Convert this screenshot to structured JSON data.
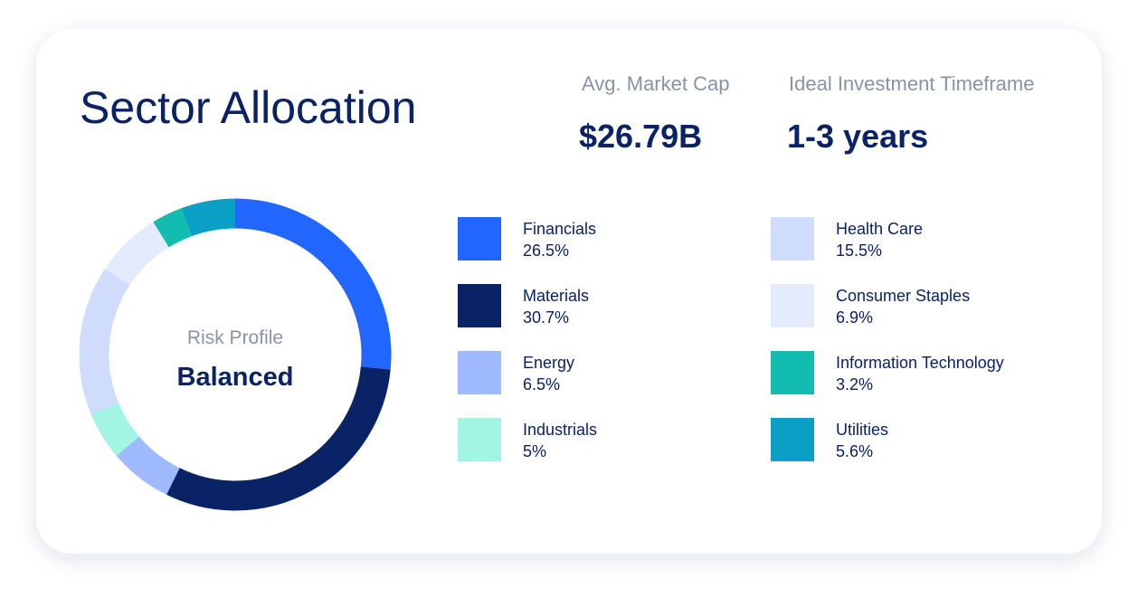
{
  "chart_data": {
    "type": "donut",
    "title": "Sector Allocation",
    "center_label": "Risk Profile",
    "center_value": "Balanced",
    "categories": [
      "Financials",
      "Materials",
      "Energy",
      "Industrials",
      "Health Care",
      "Consumer Staples",
      "Information Technology",
      "Utilities"
    ],
    "values": [
      26.5,
      30.7,
      6.5,
      5,
      15.5,
      6.9,
      3.2,
      5.6
    ],
    "value_labels": [
      "26.5%",
      "30.7%",
      "6.5%",
      "5%",
      "15.5%",
      "6.9%",
      "3.2%",
      "5.6%"
    ],
    "colors": [
      "#2166ff",
      "#0a2266",
      "#9fbaff",
      "#a3f5e3",
      "#cfdcfc",
      "#e3ebfd",
      "#12bdb0",
      "#0aa0c5"
    ]
  },
  "stats": [
    {
      "label": "Avg. Market Cap",
      "value": "$26.79B"
    },
    {
      "label": "Ideal Investment Timeframe",
      "value": "1-3 years"
    }
  ]
}
